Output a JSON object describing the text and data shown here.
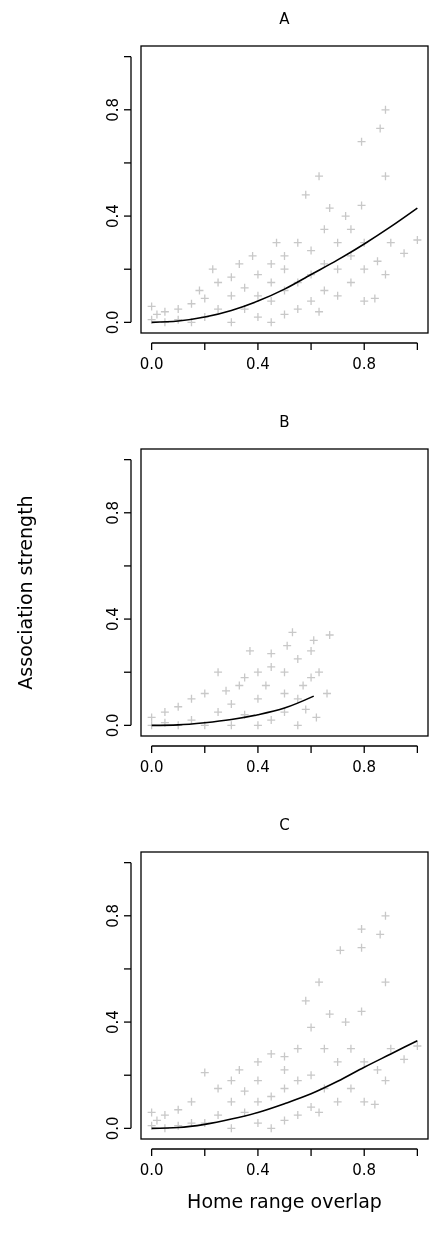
{
  "chart_data": [
    {
      "type": "scatter",
      "title": "A",
      "xlim": [
        -0.04,
        1.04
      ],
      "ylim": [
        -0.04,
        1.04
      ],
      "xticks": [
        {
          "value": 0,
          "label": "0.0"
        },
        {
          "value": 0.2,
          "label": null
        },
        {
          "value": 0.4,
          "label": "0.4"
        },
        {
          "value": 0.6,
          "label": null
        },
        {
          "value": 0.8,
          "label": "0.8"
        },
        {
          "value": 1.0,
          "label": null
        }
      ],
      "yticks": [
        {
          "value": 0,
          "label": "0.0"
        },
        {
          "value": 0.2,
          "label": null
        },
        {
          "value": 0.4,
          "label": "0.4"
        },
        {
          "value": 0.6,
          "label": null
        },
        {
          "value": 0.8,
          "label": "0.8"
        },
        {
          "value": 1.0,
          "label": null
        }
      ],
      "grid": false,
      "series": [
        {
          "type": "scatter",
          "marker": "cross",
          "color": "#c8c8c8",
          "x": [
            0,
            0,
            0.02,
            0.05,
            0.05,
            0.1,
            0.1,
            0.15,
            0.15,
            0.18,
            0.2,
            0.2,
            0.23,
            0.25,
            0.25,
            0.3,
            0.3,
            0.3,
            0.33,
            0.35,
            0.35,
            0.38,
            0.4,
            0.4,
            0.4,
            0.45,
            0.45,
            0.45,
            0.45,
            0.47,
            0.5,
            0.5,
            0.5,
            0.5,
            0.55,
            0.55,
            0.55,
            0.58,
            0.6,
            0.6,
            0.6,
            0.63,
            0.63,
            0.65,
            0.65,
            0.65,
            0.67,
            0.7,
            0.7,
            0.7,
            0.73,
            0.75,
            0.75,
            0.75,
            0.79,
            0.79,
            0.8,
            0.8,
            0.8,
            0.84,
            0.85,
            0.86,
            0.88,
            0.88,
            0.88,
            0.9,
            0.95,
            1.0
          ],
          "values": [
            0.01,
            0.06,
            0.03,
            0.0,
            0.04,
            0.01,
            0.05,
            0.0,
            0.07,
            0.12,
            0.02,
            0.09,
            0.2,
            0.05,
            0.15,
            0.0,
            0.1,
            0.17,
            0.22,
            0.05,
            0.13,
            0.25,
            0.02,
            0.1,
            0.18,
            0.0,
            0.08,
            0.15,
            0.22,
            0.3,
            0.03,
            0.12,
            0.2,
            0.25,
            0.05,
            0.15,
            0.3,
            0.48,
            0.08,
            0.18,
            0.27,
            0.55,
            0.04,
            0.12,
            0.22,
            0.35,
            0.43,
            0.1,
            0.2,
            0.3,
            0.4,
            0.15,
            0.25,
            0.35,
            0.44,
            0.68,
            0.08,
            0.2,
            0.3,
            0.09,
            0.23,
            0.73,
            0.8,
            0.55,
            0.18,
            0.3,
            0.26,
            0.31
          ]
        },
        {
          "type": "line",
          "marker": "none",
          "color": "#000000",
          "x": [
            0,
            0.1,
            0.2,
            0.3,
            0.4,
            0.5,
            0.6,
            0.7,
            0.8,
            0.9,
            1.0
          ],
          "values": [
            0,
            0.005,
            0.02,
            0.045,
            0.08,
            0.125,
            0.18,
            0.235,
            0.295,
            0.36,
            0.43
          ]
        }
      ]
    },
    {
      "type": "scatter",
      "title": "B",
      "ylabel": "Association strength",
      "xlim": [
        -0.04,
        1.04
      ],
      "ylim": [
        -0.04,
        1.04
      ],
      "xticks": [
        {
          "value": 0,
          "label": "0.0"
        },
        {
          "value": 0.2,
          "label": null
        },
        {
          "value": 0.4,
          "label": "0.4"
        },
        {
          "value": 0.6,
          "label": null
        },
        {
          "value": 0.8,
          "label": "0.8"
        },
        {
          "value": 1.0,
          "label": null
        }
      ],
      "yticks": [
        {
          "value": 0,
          "label": "0.0"
        },
        {
          "value": 0.2,
          "label": null
        },
        {
          "value": 0.4,
          "label": "0.4"
        },
        {
          "value": 0.6,
          "label": null
        },
        {
          "value": 0.8,
          "label": "0.8"
        },
        {
          "value": 1.0,
          "label": null
        }
      ],
      "grid": false,
      "series": [
        {
          "type": "scatter",
          "marker": "cross",
          "color": "#c8c8c8",
          "x": [
            0,
            0,
            0.05,
            0.05,
            0.1,
            0.1,
            0.15,
            0.15,
            0.2,
            0.2,
            0.25,
            0.25,
            0.28,
            0.3,
            0.3,
            0.33,
            0.35,
            0.35,
            0.37,
            0.4,
            0.4,
            0.4,
            0.43,
            0.45,
            0.45,
            0.45,
            0.5,
            0.5,
            0.5,
            0.51,
            0.53,
            0.55,
            0.55,
            0.55,
            0.57,
            0.58,
            0.6,
            0.6,
            0.61,
            0.62,
            0.63,
            0.66,
            0.67
          ],
          "values": [
            0.0,
            0.03,
            0.01,
            0.05,
            0.0,
            0.07,
            0.02,
            0.1,
            0.0,
            0.12,
            0.05,
            0.2,
            0.13,
            0.0,
            0.08,
            0.15,
            0.04,
            0.18,
            0.28,
            0.0,
            0.1,
            0.2,
            0.15,
            0.02,
            0.22,
            0.27,
            0.05,
            0.12,
            0.2,
            0.3,
            0.35,
            0.0,
            0.1,
            0.25,
            0.15,
            0.06,
            0.28,
            0.18,
            0.32,
            0.03,
            0.2,
            0.12,
            0.34
          ]
        },
        {
          "type": "line",
          "marker": "none",
          "color": "#000000",
          "x": [
            0,
            0.1,
            0.2,
            0.3,
            0.4,
            0.5,
            0.61
          ],
          "values": [
            0,
            0.002,
            0.01,
            0.022,
            0.04,
            0.065,
            0.11
          ]
        }
      ]
    },
    {
      "type": "scatter",
      "title": "C",
      "xlabel": "Home range overlap",
      "xlim": [
        -0.04,
        1.04
      ],
      "ylim": [
        -0.04,
        1.04
      ],
      "xticks": [
        {
          "value": 0,
          "label": "0.0"
        },
        {
          "value": 0.2,
          "label": null
        },
        {
          "value": 0.4,
          "label": "0.4"
        },
        {
          "value": 0.6,
          "label": null
        },
        {
          "value": 0.8,
          "label": "0.8"
        },
        {
          "value": 1.0,
          "label": null
        }
      ],
      "yticks": [
        {
          "value": 0,
          "label": "0.0"
        },
        {
          "value": 0.2,
          "label": null
        },
        {
          "value": 0.4,
          "label": "0.4"
        },
        {
          "value": 0.6,
          "label": null
        },
        {
          "value": 0.8,
          "label": "0.8"
        },
        {
          "value": 1.0,
          "label": null
        }
      ],
      "grid": false,
      "series": [
        {
          "type": "scatter",
          "marker": "cross",
          "color": "#c8c8c8",
          "x": [
            0,
            0,
            0.02,
            0.05,
            0.05,
            0.1,
            0.1,
            0.15,
            0.15,
            0.2,
            0.2,
            0.25,
            0.25,
            0.3,
            0.3,
            0.3,
            0.33,
            0.35,
            0.35,
            0.4,
            0.4,
            0.4,
            0.4,
            0.45,
            0.45,
            0.45,
            0.5,
            0.5,
            0.5,
            0.5,
            0.55,
            0.55,
            0.55,
            0.58,
            0.6,
            0.6,
            0.6,
            0.63,
            0.63,
            0.65,
            0.65,
            0.67,
            0.7,
            0.7,
            0.71,
            0.73,
            0.75,
            0.75,
            0.79,
            0.79,
            0.79,
            0.8,
            0.8,
            0.84,
            0.85,
            0.86,
            0.88,
            0.88,
            0.88,
            0.9,
            0.95,
            1.0
          ],
          "values": [
            0.01,
            0.06,
            0.03,
            0.0,
            0.05,
            0.01,
            0.07,
            0.02,
            0.1,
            0.02,
            0.21,
            0.05,
            0.15,
            0.0,
            0.1,
            0.18,
            0.22,
            0.06,
            0.14,
            0.02,
            0.1,
            0.18,
            0.25,
            0.0,
            0.12,
            0.28,
            0.03,
            0.15,
            0.22,
            0.27,
            0.05,
            0.18,
            0.3,
            0.48,
            0.08,
            0.2,
            0.38,
            0.55,
            0.06,
            0.15,
            0.3,
            0.43,
            0.1,
            0.25,
            0.67,
            0.4,
            0.15,
            0.3,
            0.44,
            0.68,
            0.75,
            0.1,
            0.25,
            0.09,
            0.22,
            0.73,
            0.8,
            0.55,
            0.18,
            0.3,
            0.26,
            0.31
          ]
        },
        {
          "type": "line",
          "marker": "none",
          "color": "#000000",
          "x": [
            0,
            0.1,
            0.2,
            0.3,
            0.4,
            0.5,
            0.6,
            0.7,
            0.8,
            0.9,
            1.0
          ],
          "values": [
            0,
            0.003,
            0.015,
            0.035,
            0.06,
            0.093,
            0.13,
            0.177,
            0.23,
            0.28,
            0.33
          ]
        }
      ]
    }
  ]
}
